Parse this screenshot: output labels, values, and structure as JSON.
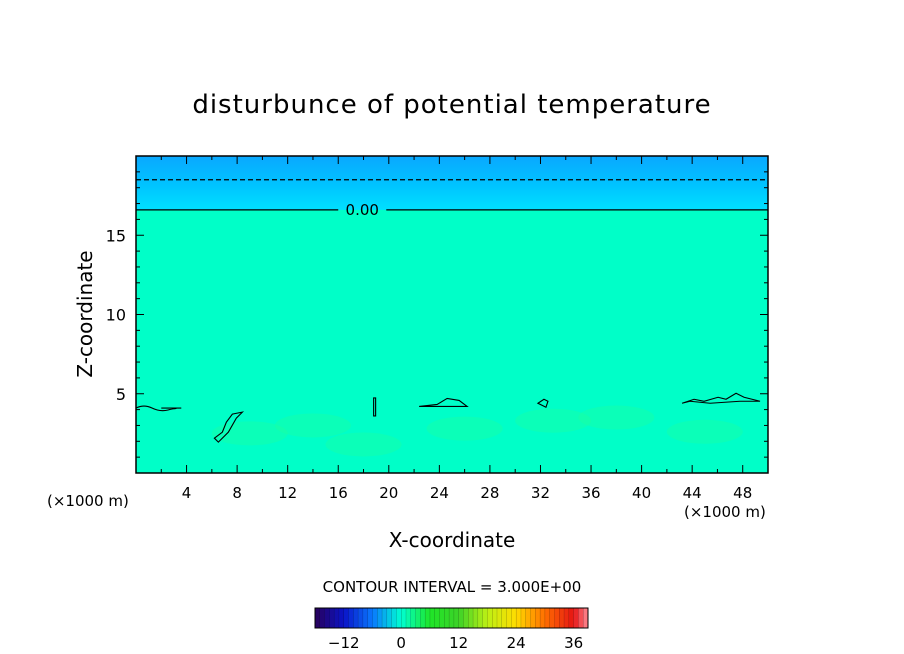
{
  "chart_data": {
    "type": "heatmap",
    "title": "disturbunce of potential temperature",
    "xlabel": "X-coordinate",
    "ylabel": "Z-coordinate",
    "x_unit_left": "(×1000 m)",
    "x_unit_right": "(×1000 m)",
    "xlim": [
      0,
      50
    ],
    "ylim": [
      0,
      20
    ],
    "xticks": [
      4,
      8,
      12,
      16,
      20,
      24,
      28,
      32,
      36,
      40,
      44,
      48
    ],
    "yticks": [
      5,
      10,
      15
    ],
    "contour_label": "0.00",
    "contour_interval_text": "CONTOUR INTERVAL = 3.000E+00",
    "colorbar": {
      "min": -18,
      "max": 39,
      "interval": 3,
      "ticks": [
        -12,
        0,
        12,
        24,
        36
      ]
    },
    "field_summary": [
      {
        "z_range": [
          0,
          4
        ],
        "value": 0.5
      },
      {
        "z_range": [
          4,
          16.6
        ],
        "value": 0.0
      },
      {
        "z_range": [
          16.6,
          18.5
        ],
        "value": -1.5
      },
      {
        "z_range": [
          18.5,
          20
        ],
        "value": -3.0
      }
    ],
    "contours": [
      {
        "level": 0.0,
        "style": "solid",
        "z": 16.6
      },
      {
        "level": -3.0,
        "style": "dashed",
        "z": 18.5
      }
    ],
    "colors": {
      "near_zero": "#00ffc8",
      "slightly_negative": "#00e0ff",
      "negative": "#0aa8ff",
      "positive_small": "#20ff9a"
    }
  }
}
